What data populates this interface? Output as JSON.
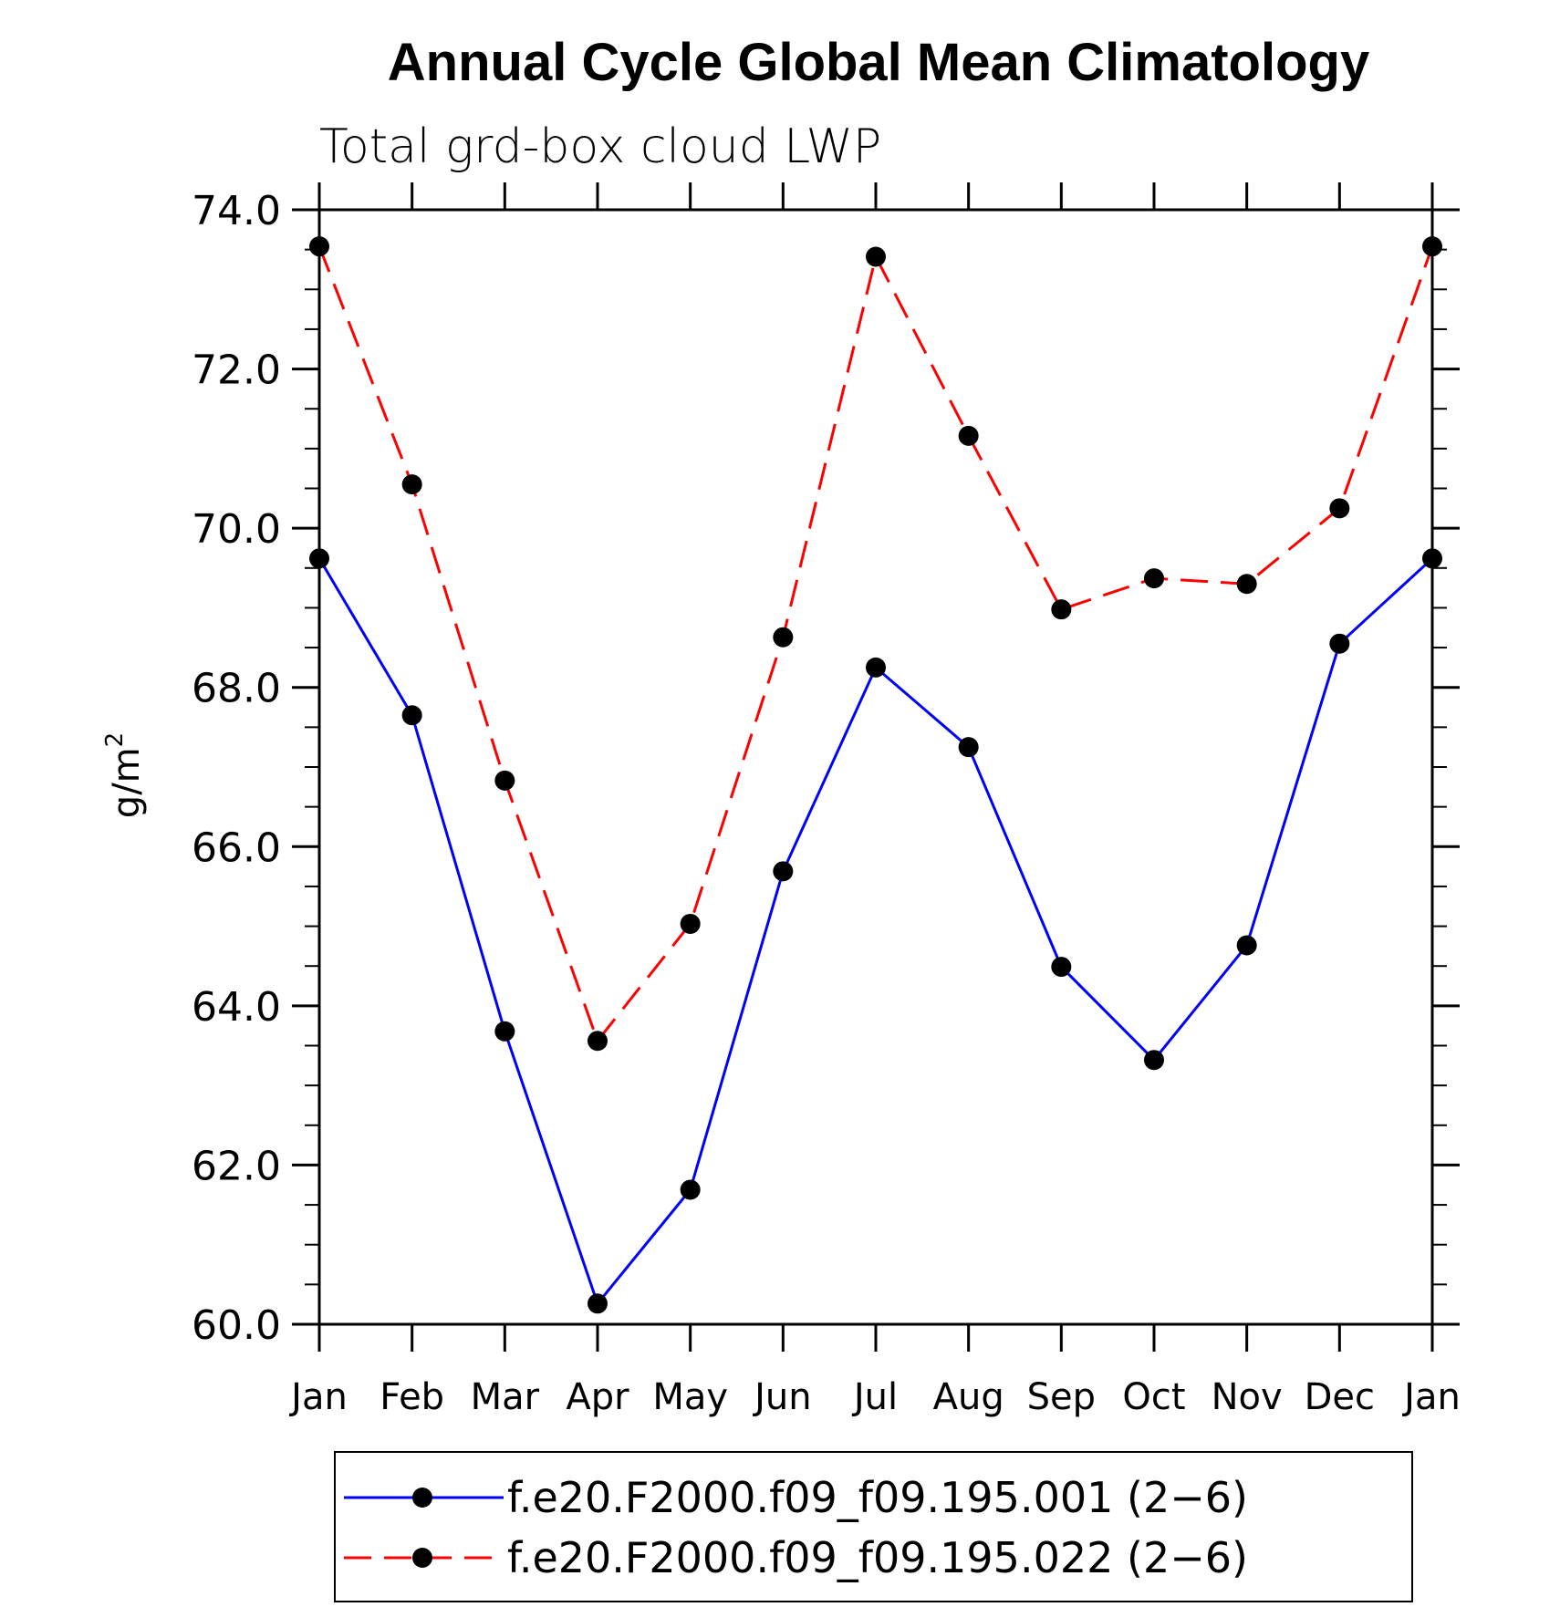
{
  "chart_data": {
    "type": "line",
    "title": "Annual Cycle Global Mean Climatology",
    "subtitle": "Total grd-box cloud LWP",
    "ylabel": "g/m",
    "ylabel_sup": "2",
    "xlabel": "",
    "categories": [
      "Jan",
      "Feb",
      "Mar",
      "Apr",
      "May",
      "Jun",
      "Jul",
      "Aug",
      "Sep",
      "Oct",
      "Nov",
      "Dec",
      "Jan"
    ],
    "ylim": [
      60.0,
      74.0
    ],
    "yticks": [
      "60.0",
      "62.0",
      "64.0",
      "66.0",
      "68.0",
      "70.0",
      "72.0",
      "74.0"
    ],
    "legend_position": "bottom",
    "series": [
      {
        "name": "f.e20.F2000.f09_f09.195.001 (2−6)",
        "color": "#0000ff",
        "style": "solid",
        "marker": "filled-circle",
        "values": [
          69.62,
          67.65,
          63.68,
          60.26,
          61.69,
          65.69,
          68.25,
          67.25,
          64.49,
          63.32,
          64.76,
          68.55,
          69.62
        ]
      },
      {
        "name": "f.e20.F2000.f09_f09.195.022 (2−6)",
        "color": "#ff0000",
        "style": "dashed",
        "marker": "filled-circle",
        "values": [
          73.54,
          70.55,
          66.83,
          63.56,
          65.03,
          68.63,
          73.41,
          71.16,
          68.98,
          69.37,
          69.3,
          70.25,
          73.54
        ]
      }
    ]
  }
}
